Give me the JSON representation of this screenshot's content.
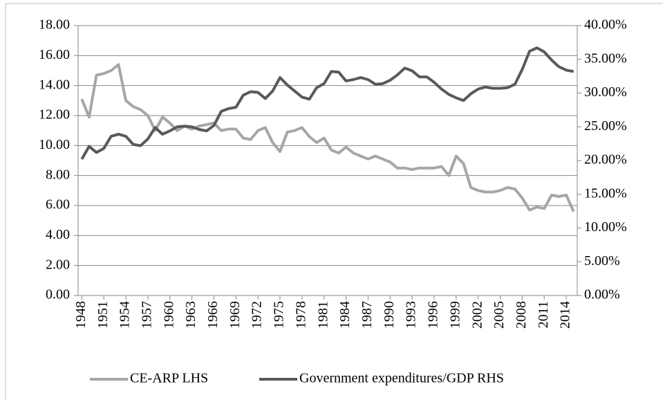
{
  "chart_data": {
    "type": "line",
    "x": [
      1948,
      1949,
      1950,
      1951,
      1952,
      1953,
      1954,
      1955,
      1956,
      1957,
      1958,
      1959,
      1960,
      1961,
      1962,
      1963,
      1964,
      1965,
      1966,
      1967,
      1968,
      1969,
      1970,
      1971,
      1972,
      1973,
      1974,
      1975,
      1976,
      1977,
      1978,
      1979,
      1980,
      1981,
      1982,
      1983,
      1984,
      1985,
      1986,
      1987,
      1988,
      1989,
      1990,
      1991,
      1992,
      1993,
      1994,
      1995,
      1996,
      1997,
      1998,
      1999,
      2000,
      2001,
      2002,
      2003,
      2004,
      2005,
      2006,
      2007,
      2008,
      2009,
      2010,
      2011,
      2012,
      2013,
      2014,
      2015
    ],
    "xlim": [
      1947.5,
      2015.5
    ],
    "xticks": [
      1948,
      1951,
      1954,
      1957,
      1960,
      1963,
      1966,
      1969,
      1972,
      1975,
      1978,
      1981,
      1984,
      1987,
      1990,
      1993,
      1996,
      1999,
      2002,
      2005,
      2008,
      2011,
      2014
    ],
    "ylim": [
      0,
      18
    ],
    "yticks": [
      {
        "value": 0,
        "label": "0.00"
      },
      {
        "value": 2,
        "label": "2.00"
      },
      {
        "value": 4,
        "label": "4.00"
      },
      {
        "value": 6,
        "label": "6.00"
      },
      {
        "value": 8,
        "label": "8.00"
      },
      {
        "value": 10,
        "label": "10.00"
      },
      {
        "value": 12,
        "label": "12.00"
      },
      {
        "value": 14,
        "label": "14.00"
      },
      {
        "value": 16,
        "label": "16.00"
      },
      {
        "value": 18,
        "label": "18.00"
      }
    ],
    "y2lim": [
      0,
      40
    ],
    "y2ticks": [
      {
        "value": 0,
        "label": "0.00%"
      },
      {
        "value": 5,
        "label": "5.00%"
      },
      {
        "value": 10,
        "label": "10.00%"
      },
      {
        "value": 15,
        "label": "15.00%"
      },
      {
        "value": 20,
        "label": "20.00%"
      },
      {
        "value": 25,
        "label": "25.00%"
      },
      {
        "value": 30,
        "label": "30.00%"
      },
      {
        "value": 35,
        "label": "35.00%"
      },
      {
        "value": 40,
        "label": "40.00%"
      }
    ],
    "grid": true,
    "legend": "bottom",
    "series": [
      {
        "name": "CE-ARP LHS",
        "color": "#a6a6a6",
        "values": [
          13.1,
          11.9,
          14.7,
          14.8,
          15.0,
          15.4,
          13.0,
          12.6,
          12.4,
          12.0,
          11.0,
          11.9,
          11.5,
          11.0,
          11.3,
          11.1,
          11.3,
          11.4,
          11.5,
          11.0,
          11.1,
          11.1,
          10.5,
          10.4,
          11.0,
          11.2,
          10.2,
          9.6,
          10.9,
          11.0,
          11.2,
          10.6,
          10.2,
          10.5,
          9.7,
          9.5,
          9.9,
          9.5,
          9.3,
          9.1,
          9.3,
          9.1,
          8.9,
          8.5,
          8.5,
          8.4,
          8.5,
          8.5,
          8.5,
          8.6,
          8.0,
          9.3,
          8.8,
          7.2,
          7.0,
          6.9,
          6.9,
          7.0,
          7.2,
          7.1,
          6.5,
          5.7,
          5.9,
          5.8,
          6.7,
          6.6,
          6.7,
          5.6
        ]
      },
      {
        "name": "Government expenditures/GDP RHS",
        "color": "#595959",
        "axis": "y2",
        "values": [
          20.2,
          22.1,
          21.2,
          21.8,
          23.6,
          23.9,
          23.6,
          22.4,
          22.2,
          23.2,
          24.9,
          23.9,
          24.4,
          25.0,
          25.1,
          25.0,
          24.6,
          24.4,
          25.2,
          27.3,
          27.7,
          27.9,
          29.7,
          30.2,
          30.1,
          29.2,
          30.3,
          32.3,
          31.2,
          30.3,
          29.4,
          29.1,
          30.8,
          31.4,
          33.2,
          33.1,
          31.8,
          32.0,
          32.3,
          32.0,
          31.3,
          31.4,
          31.9,
          32.7,
          33.7,
          33.3,
          32.4,
          32.4,
          31.6,
          30.6,
          29.8,
          29.3,
          28.9,
          29.9,
          30.6,
          30.9,
          30.7,
          30.7,
          30.8,
          31.3,
          33.5,
          36.2,
          36.7,
          36.1,
          34.9,
          33.9,
          33.4,
          33.2
        ]
      }
    ]
  }
}
